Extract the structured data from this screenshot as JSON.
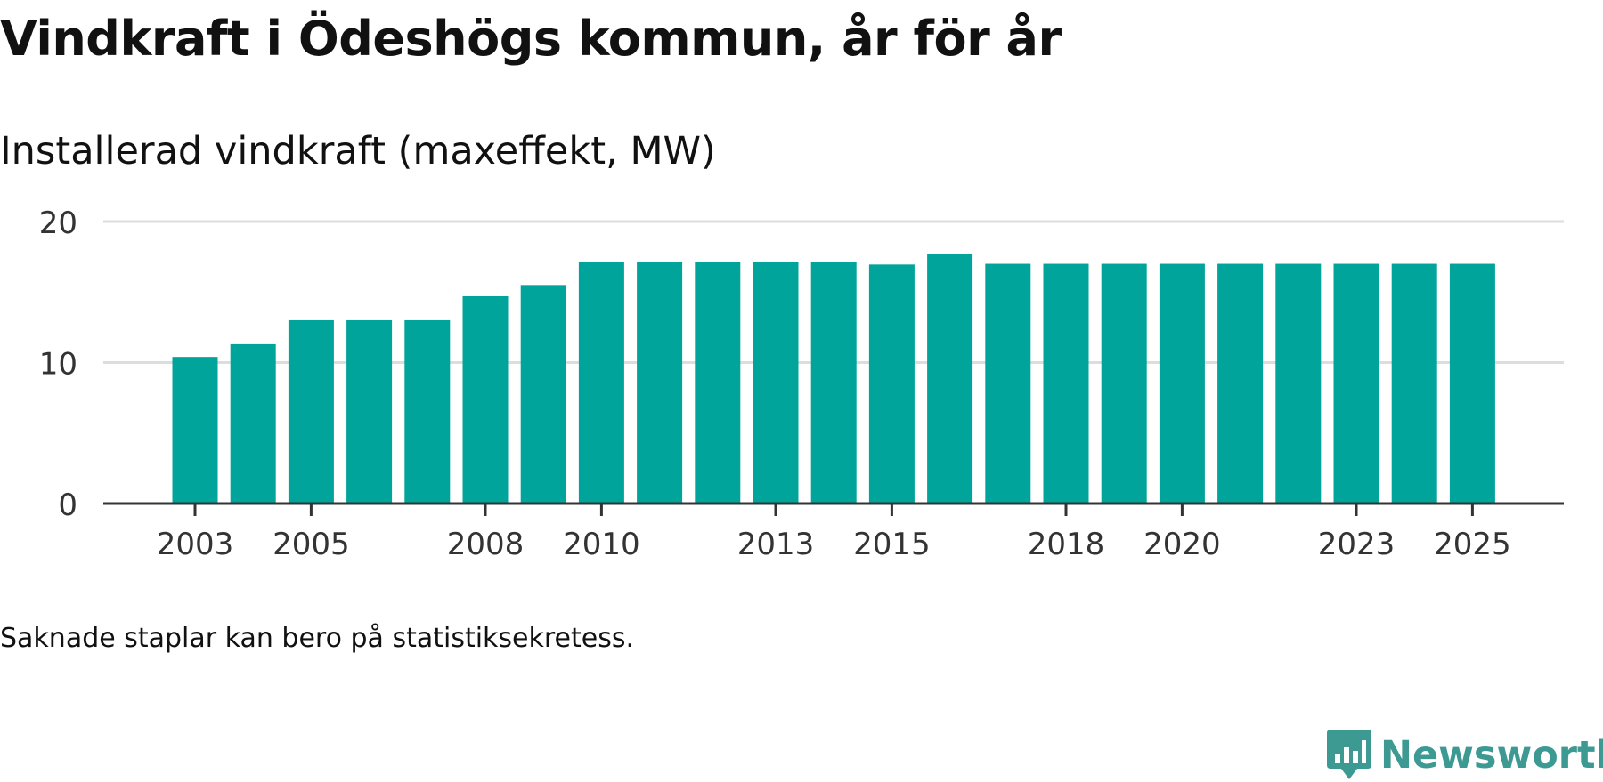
{
  "title": "Vindkraft i Ödeshögs kommun, år för år",
  "subtitle": "Installerad vindkraft (maxeffekt, MW)",
  "note": "Saknade staplar kan bero på statistiksekretess.",
  "brand": "Newsworthy",
  "colors": {
    "bar": "#00a49b",
    "grid": "#dddddd",
    "axis": "#333333",
    "brand": "#3d9a93"
  },
  "chart_data": {
    "type": "bar",
    "title": "Vindkraft i Ödeshögs kommun, år för år",
    "ylabel": "Installerad vindkraft (maxeffekt, MW)",
    "xlabel": "",
    "categories": [
      "2003",
      "2004",
      "2005",
      "2006",
      "2007",
      "2008",
      "2009",
      "2010",
      "2011",
      "2012",
      "2013",
      "2014",
      "2015",
      "2016",
      "2017",
      "2018",
      "2019",
      "2020",
      "2021",
      "2022",
      "2023",
      "2024",
      "2025"
    ],
    "values": [
      10.4,
      11.3,
      13.0,
      13.0,
      13.0,
      14.7,
      15.5,
      17.1,
      17.1,
      17.1,
      17.1,
      17.1,
      16.95,
      17.7,
      17.0,
      17.0,
      17.0,
      17.0,
      17.0,
      17.0,
      17.0,
      17.0,
      17.0
    ],
    "ylim": [
      0,
      20
    ],
    "yticks": [
      "0",
      "10",
      "20"
    ],
    "xticks": [
      "2003",
      "2005",
      "2008",
      "2010",
      "2013",
      "2015",
      "2018",
      "2020",
      "2023",
      "2025"
    ],
    "grid": true
  }
}
